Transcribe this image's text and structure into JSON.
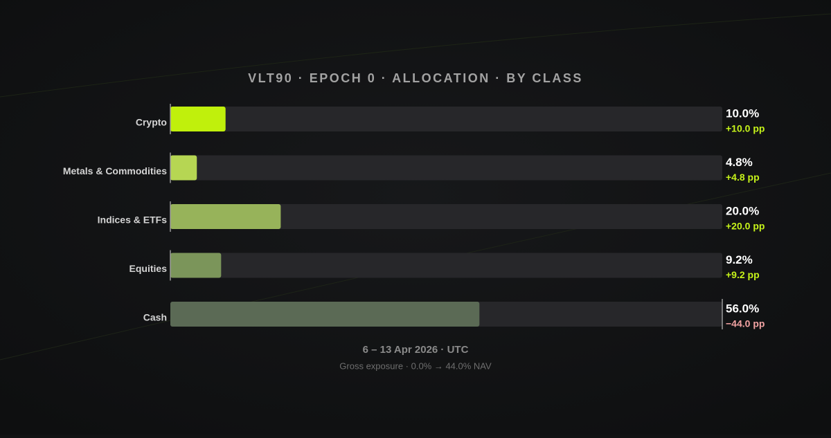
{
  "chart_data": {
    "type": "bar",
    "orientation": "horizontal",
    "title": "VLT90 · EPOCH 0 · ALLOCATION · BY CLASS",
    "subtitle": "6 – 13 Apr 2026 · UTC",
    "footnote": "Gross exposure · 0.0% → 44.0% NAV",
    "categories": [
      "Crypto",
      "Metals & Commodities",
      "Indices & ETFs",
      "Equities",
      "Cash"
    ],
    "values": [
      10.0,
      4.8,
      20.0,
      9.2,
      56.0
    ],
    "value_labels": [
      "10.0%",
      "4.8%",
      "20.0%",
      "9.2%",
      "56.0%"
    ],
    "colors": [
      "#c0f00c",
      "#b6d653",
      "#97b35a",
      "#7b955a",
      "#5b6a55"
    ],
    "changes": {
      "values": [
        10.0,
        4.8,
        20.0,
        9.2,
        -44.0
      ],
      "value_labels": [
        "+10.0 pp",
        "+4.8 pp",
        "+20.0 pp",
        "+9.2 pp",
        "−44.0 pp"
      ],
      "colors": {
        "positive": "#c6f31a",
        "negative": "#f2a3a3"
      }
    },
    "xlim": [
      0,
      100
    ],
    "track_color": "#27272a"
  }
}
